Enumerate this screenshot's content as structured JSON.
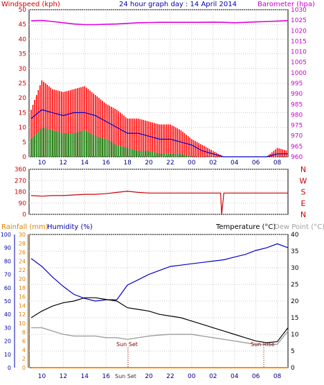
{
  "header": {
    "windspeed_label": "Windspeed (kph)",
    "title": "24 hour graph day : 14 April 2014",
    "barometer_label": "Barometer (hpa)"
  },
  "lower_header": {
    "rainfall_label": "Rainfall (mm)",
    "humidity_label": "Humidity (%)",
    "temperature_label": "Temperature (°C)",
    "dewpoint_label": "Dew Point (°C)"
  },
  "annotations": {
    "sunset": "Sun Set",
    "sunrise": "Sun Rise",
    "sunset_axis": "Sun Set"
  },
  "colors": {
    "gust": "#ff0000",
    "average": "#0000cc",
    "low": "#008000",
    "barometer": "#e000e0",
    "direction": "#cc0000",
    "humidity": "#0000cc",
    "temperature": "#000000",
    "dewpoint": "#a0a0a0",
    "rainfall": "#ff8c00",
    "axis_red": "#cc0000",
    "axis_magenta": "#cc00cc",
    "axis_blue": "#0000aa",
    "axis_orange": "#e08000"
  },
  "chart_data": [
    {
      "type": "line",
      "name": "wind-barometer",
      "x_ticks": [
        "10",
        "12",
        "14",
        "16",
        "18",
        "20",
        "22",
        "00",
        "02",
        "04",
        "06",
        "08"
      ],
      "y_left": {
        "label": "Windspeed (kph)",
        "ticks": [
          0,
          5,
          10,
          15,
          20,
          25,
          30,
          35,
          40,
          45,
          50
        ],
        "range": [
          0,
          50
        ]
      },
      "y_right": {
        "label": "Barometer (hpa)",
        "ticks": [
          980,
          985,
          990,
          995,
          1000,
          1005,
          1010,
          1015,
          1020,
          1025,
          1030
        ],
        "extra_ticks": [
          "960",
          "965",
          "970",
          "975"
        ],
        "range": [
          960,
          1030
        ]
      },
      "series": [
        {
          "name": "gust",
          "x": [
            9.0,
            10.0,
            11.0,
            12.0,
            13.0,
            14.0,
            15.0,
            16.0,
            17.0,
            18.0,
            19.0,
            20.0,
            21.0,
            22.0,
            23.0,
            24.0,
            25.0,
            26.0,
            27.0,
            28.0,
            29.0,
            30.0,
            31.0,
            32.0,
            33.0
          ],
          "y": [
            16,
            26,
            23,
            22,
            23,
            24,
            21,
            18,
            16,
            13,
            13,
            12,
            11,
            11,
            9,
            6,
            4,
            2,
            0,
            0,
            0,
            0,
            0,
            3,
            2
          ]
        },
        {
          "name": "average",
          "x": [
            9.0,
            10.0,
            11.0,
            12.0,
            13.0,
            14.0,
            15.0,
            16.0,
            17.0,
            18.0,
            19.0,
            20.0,
            21.0,
            22.0,
            23.0,
            24.0,
            25.0,
            26.0,
            27.0,
            28.0,
            29.0,
            30.0,
            31.0,
            32.0,
            33.0
          ],
          "y": [
            13,
            16,
            15,
            14,
            15,
            15,
            14,
            12,
            10,
            8,
            8,
            7,
            6,
            6,
            5,
            4,
            2,
            1,
            0,
            0,
            0,
            0,
            0,
            1,
            1
          ]
        },
        {
          "name": "low",
          "x": [
            9.0,
            10.0,
            11.0,
            12.0,
            13.0,
            14.0,
            15.0,
            16.0,
            17.0,
            18.0,
            19.0,
            20.0,
            21.0,
            22.0,
            23.0,
            24.0,
            25.0,
            26.0,
            27.0,
            28.0,
            29.0,
            30.0,
            31.0,
            32.0,
            33.0
          ],
          "y": [
            6,
            10,
            9,
            8,
            8,
            9,
            7,
            6,
            4,
            3,
            2,
            2,
            1,
            1,
            1,
            0,
            0,
            0,
            0,
            0,
            0,
            0,
            0,
            0,
            0
          ]
        },
        {
          "name": "barometer",
          "x": [
            9.0,
            10.0,
            11.0,
            12.0,
            13.0,
            14.0,
            15.0,
            16.0,
            17.0,
            18.0,
            19.0,
            20.0,
            21.0,
            22.0,
            23.0,
            24.0,
            25.0,
            26.0,
            27.0,
            28.0,
            29.0,
            30.0,
            31.0,
            32.0,
            33.0
          ],
          "y": [
            1024.7,
            1024.9,
            1024.4,
            1023.8,
            1023.2,
            1022.9,
            1022.9,
            1023.1,
            1023.2,
            1023.5,
            1023.8,
            1023.9,
            1024.0,
            1024.0,
            1024.0,
            1024.0,
            1024.0,
            1024.1,
            1024.0,
            1023.8,
            1024.0,
            1024.2,
            1024.4,
            1024.6,
            1024.8
          ]
        }
      ]
    },
    {
      "type": "line",
      "name": "wind-direction",
      "x_ticks": [
        "10",
        "12",
        "14",
        "16",
        "18",
        "20",
        "22",
        "00",
        "02",
        "04",
        "06",
        "08"
      ],
      "y_left": {
        "ticks": [
          0,
          90,
          180,
          270,
          360
        ],
        "range": [
          0,
          360
        ]
      },
      "y_right": {
        "labels": [
          "N",
          "W",
          "S",
          "E",
          "N"
        ]
      },
      "series": [
        {
          "name": "direction",
          "x": [
            9.0,
            10.0,
            11.0,
            12.0,
            13.0,
            14.0,
            15.0,
            16.0,
            17.0,
            18.0,
            19.0,
            20.0,
            21.0,
            22.0,
            23.0,
            24.0,
            25.0,
            26.0,
            26.7,
            26.8,
            27.0,
            28.0,
            29.0,
            30.0,
            31.0,
            32.0,
            33.0
          ],
          "y": [
            150,
            145,
            150,
            150,
            155,
            160,
            160,
            165,
            175,
            185,
            175,
            170,
            170,
            170,
            170,
            170,
            170,
            170,
            170,
            0,
            170,
            170,
            170,
            170,
            170,
            170,
            170
          ]
        }
      ]
    },
    {
      "type": "line",
      "name": "temperature-humidity",
      "x_ticks": [
        "10",
        "12",
        "14",
        "16",
        "18",
        "20",
        "22",
        "00",
        "02",
        "04",
        "06",
        "08"
      ],
      "y_humidity": {
        "label": "Humidity (%)",
        "ticks": [
          0,
          10,
          20,
          30,
          40,
          50,
          60,
          70,
          80,
          90,
          100
        ],
        "range": [
          0,
          100
        ]
      },
      "y_rainfall": {
        "label": "Rainfall (mm)",
        "ticks": [
          0,
          2,
          4,
          6,
          8,
          10,
          12,
          14,
          16,
          18,
          20,
          22,
          24,
          26,
          28,
          30
        ],
        "range": [
          0,
          30
        ]
      },
      "y_temperature": {
        "label": "Temperature (°C)",
        "ticks": [
          0,
          5,
          10,
          15,
          20,
          25,
          30,
          35,
          40
        ],
        "range": [
          0,
          40
        ]
      },
      "series": [
        {
          "name": "humidity",
          "x": [
            9.0,
            10.0,
            11.0,
            12.0,
            13.0,
            14.0,
            15.0,
            16.0,
            17.0,
            18.0,
            19.0,
            20.0,
            21.0,
            22.0,
            23.0,
            24.0,
            25.0,
            26.0,
            27.0,
            28.0,
            29.0,
            30.0,
            31.0,
            32.0,
            33.0
          ],
          "y": [
            82,
            76,
            68,
            61,
            55,
            52,
            50,
            51,
            51,
            62,
            66,
            70,
            73,
            76,
            77,
            78,
            79,
            80,
            81,
            83,
            85,
            88,
            90,
            93,
            90
          ]
        },
        {
          "name": "temperature",
          "x": [
            9.0,
            10.0,
            11.0,
            12.0,
            13.0,
            14.0,
            15.0,
            16.0,
            17.0,
            18.0,
            19.0,
            20.0,
            21.0,
            22.0,
            23.0,
            24.0,
            25.0,
            26.0,
            27.0,
            28.0,
            29.0,
            30.0,
            31.0,
            32.0,
            33.0
          ],
          "y": [
            15,
            17,
            18.5,
            19.5,
            20,
            21,
            21,
            20.5,
            20,
            18,
            17.5,
            17,
            16,
            15.5,
            15,
            14,
            13,
            12,
            11,
            10,
            9,
            8,
            7.5,
            7.8,
            12
          ]
        },
        {
          "name": "dewpoint",
          "x": [
            9.0,
            10.0,
            11.0,
            12.0,
            13.0,
            14.0,
            15.0,
            16.0,
            17.0,
            18.0,
            19.0,
            20.0,
            21.0,
            22.0,
            23.0,
            24.0,
            25.0,
            26.0,
            27.0,
            28.0,
            29.0,
            30.0,
            31.0,
            32.0,
            33.0
          ],
          "y": [
            12,
            12,
            11,
            10,
            9.5,
            9.5,
            9.5,
            9,
            9,
            8.5,
            9,
            9.5,
            9.8,
            10,
            10,
            10,
            9.5,
            9,
            8.5,
            8,
            7.5,
            7,
            7,
            7,
            11
          ]
        },
        {
          "name": "rainfall",
          "x": [
            9.0,
            33.0
          ],
          "y": [
            0,
            0
          ]
        }
      ]
    }
  ]
}
